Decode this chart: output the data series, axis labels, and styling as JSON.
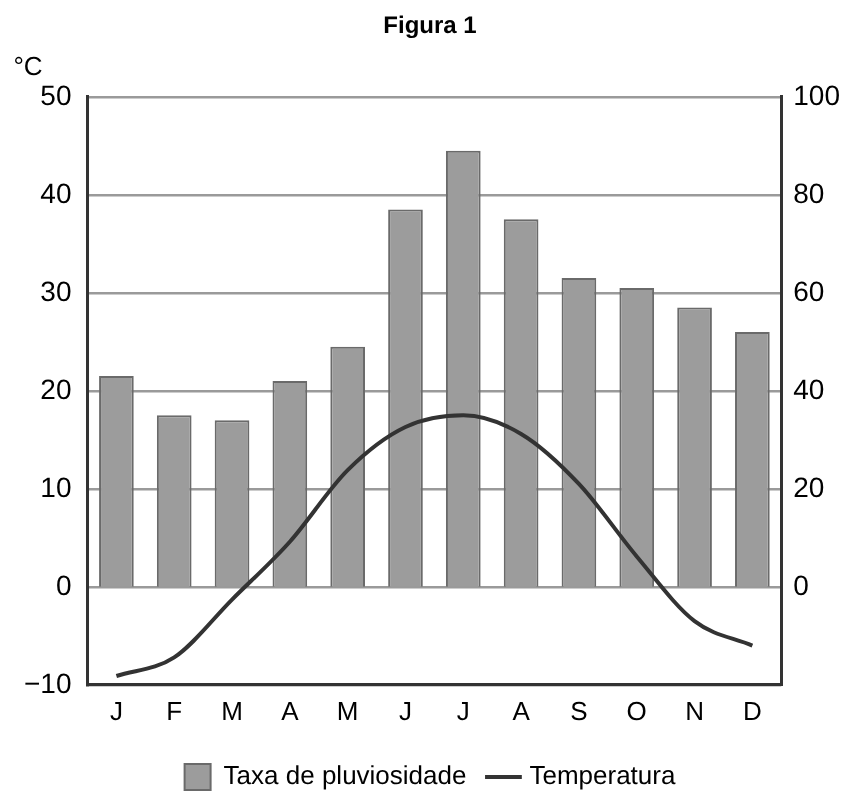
{
  "chart_data": {
    "type": "bar",
    "title": "Figura 1",
    "ylabel": "°C",
    "categories": [
      "J",
      "F",
      "M",
      "A",
      "M",
      "J",
      "J",
      "A",
      "S",
      "O",
      "N",
      "D"
    ],
    "series": [
      {
        "name": "Taxa de pluviosidade",
        "axis": "y2",
        "color": "#9c9c9c",
        "values": [
          43,
          35,
          34,
          42,
          49,
          77,
          89,
          75,
          63,
          61,
          57,
          52
        ]
      },
      {
        "name": "Temperatura",
        "type": "line",
        "axis": "y",
        "color": "#333333",
        "values": [
          -9.1,
          -7.2,
          -1.3,
          4.6,
          11.9,
          16.3,
          17.5,
          15.6,
          10.5,
          3.1,
          -3.5,
          -6.0
        ]
      }
    ],
    "ylim": [
      -10,
      50
    ],
    "yticks": [
      -10,
      0,
      10,
      20,
      30,
      40,
      50
    ],
    "y2lim": [
      -20,
      100
    ],
    "y2ticks": [
      0,
      20,
      40,
      60,
      80,
      100
    ],
    "grid": "y",
    "legend": "bottom",
    "marker": "none",
    "line_style": "solid"
  }
}
